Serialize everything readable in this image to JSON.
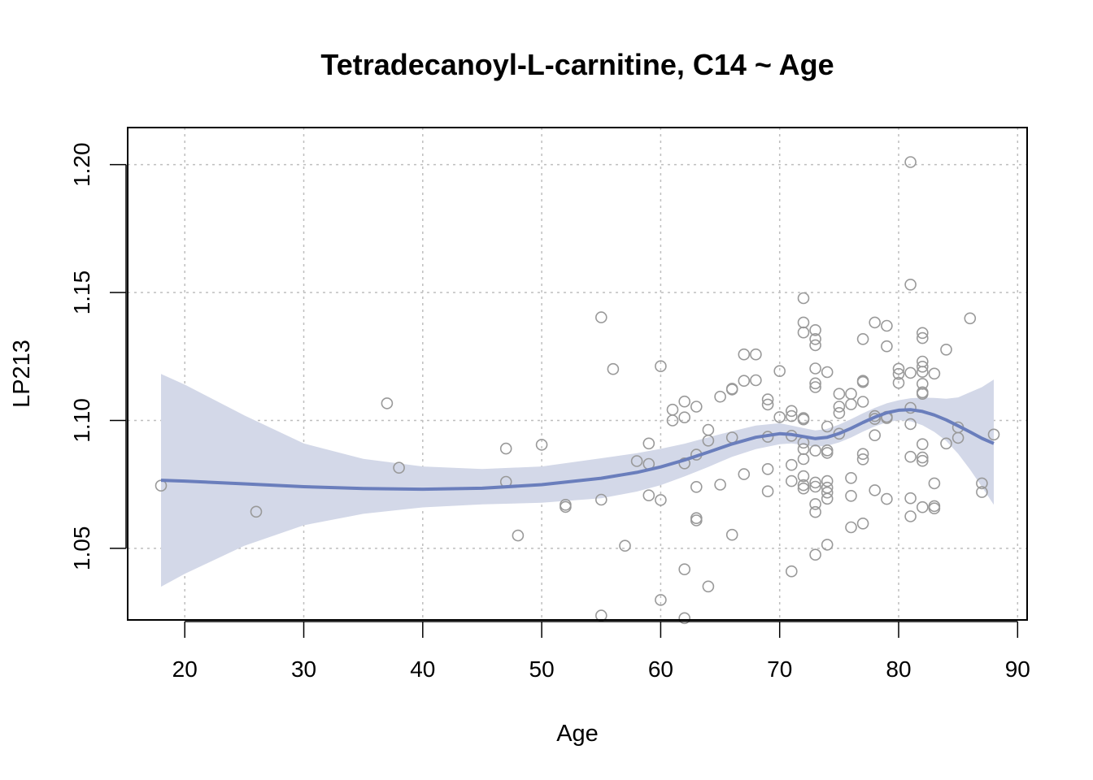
{
  "chart_data": {
    "type": "scatter",
    "title": "Tetradecanoyl-L-carnitine, C14 ~ Age",
    "xlabel": "Age",
    "ylabel": "LP213",
    "xlim": [
      15.2,
      90.8
    ],
    "ylim": [
      1.022,
      1.2145
    ],
    "xticks": [
      20,
      30,
      40,
      50,
      60,
      70,
      80,
      90
    ],
    "yticks": [
      1.05,
      1.1,
      1.15,
      1.2
    ],
    "ytick_labels": [
      "1.05",
      "1.10",
      "1.15",
      "1.20"
    ],
    "grid": true,
    "colors": {
      "points": "#999999",
      "smooth": "#6A7EBC",
      "band": "#D3D8E8",
      "grid": "#BEBEBE"
    },
    "points": [
      [
        18,
        1.0745
      ],
      [
        26,
        1.0643
      ],
      [
        37,
        1.1067
      ],
      [
        38,
        1.0815
      ],
      [
        47,
        1.089
      ],
      [
        47,
        1.076
      ],
      [
        48,
        1.055
      ],
      [
        50,
        1.0905
      ],
      [
        52,
        1.067
      ],
      [
        52,
        1.0662
      ],
      [
        55,
        1.1403
      ],
      [
        55,
        1.069
      ],
      [
        55,
        1.0237
      ],
      [
        56,
        1.1201
      ],
      [
        57,
        1.051
      ],
      [
        58,
        1.0841
      ],
      [
        59,
        1.091
      ],
      [
        59,
        1.083
      ],
      [
        59,
        1.0707
      ],
      [
        60,
        1.1212
      ],
      [
        60,
        1.0689
      ],
      [
        60,
        1.0298
      ],
      [
        61,
        1.1042
      ],
      [
        61,
        1.1
      ],
      [
        62,
        1.1074
      ],
      [
        62,
        1.1012
      ],
      [
        62,
        1.0832
      ],
      [
        62,
        1.0418
      ],
      [
        62,
        1.0227
      ],
      [
        63,
        1.1054
      ],
      [
        63,
        1.0866
      ],
      [
        63,
        1.074
      ],
      [
        63,
        1.0618
      ],
      [
        63,
        1.0609
      ],
      [
        64,
        1.0963
      ],
      [
        64,
        1.0921
      ],
      [
        64,
        1.0351
      ],
      [
        65,
        1.1093
      ],
      [
        65,
        1.0749
      ],
      [
        66,
        1.1124
      ],
      [
        66,
        1.1121
      ],
      [
        66,
        1.0933
      ],
      [
        66,
        1.0553
      ],
      [
        67,
        1.1258
      ],
      [
        67,
        1.1155
      ],
      [
        67,
        1.079
      ],
      [
        68,
        1.1258
      ],
      [
        68,
        1.1157
      ],
      [
        69,
        1.1082
      ],
      [
        69,
        1.1062
      ],
      [
        69,
        1.0936
      ],
      [
        69,
        1.081
      ],
      [
        69,
        1.0723
      ],
      [
        70,
        1.1193
      ],
      [
        70,
        1.1013
      ],
      [
        71,
        1.1037
      ],
      [
        71,
        1.1017
      ],
      [
        71,
        1.094
      ],
      [
        71,
        1.0826
      ],
      [
        71,
        1.0763
      ],
      [
        71,
        1.041
      ],
      [
        72,
        1.1478
      ],
      [
        72,
        1.1383
      ],
      [
        72,
        1.1344
      ],
      [
        72,
        1.1009
      ],
      [
        72,
        1.1004
      ],
      [
        72,
        1.0913
      ],
      [
        72,
        1.0888
      ],
      [
        72,
        1.0849
      ],
      [
        72,
        1.0782
      ],
      [
        72,
        1.0747
      ],
      [
        72,
        1.0734
      ],
      [
        73,
        1.1353
      ],
      [
        73,
        1.1318
      ],
      [
        73,
        1.1294
      ],
      [
        73,
        1.1203
      ],
      [
        73,
        1.1145
      ],
      [
        73,
        1.113
      ],
      [
        73,
        1.0882
      ],
      [
        73,
        1.0757
      ],
      [
        73,
        1.0741
      ],
      [
        73,
        1.0673
      ],
      [
        73,
        1.0642
      ],
      [
        73,
        1.0475
      ],
      [
        74,
        1.1189
      ],
      [
        74,
        1.0976
      ],
      [
        74,
        1.0883
      ],
      [
        74,
        1.0873
      ],
      [
        74,
        1.0763
      ],
      [
        74,
        1.0737
      ],
      [
        74,
        1.0718
      ],
      [
        74,
        1.0694
      ],
      [
        74,
        1.0514
      ],
      [
        75,
        1.1104
      ],
      [
        75,
        1.1054
      ],
      [
        75,
        1.1029
      ],
      [
        75,
        1.0948
      ],
      [
        76,
        1.1104
      ],
      [
        76,
        1.1063
      ],
      [
        76,
        1.0775
      ],
      [
        76,
        1.0705
      ],
      [
        76,
        1.0582
      ],
      [
        77,
        1.1318
      ],
      [
        77,
        1.1155
      ],
      [
        77,
        1.115
      ],
      [
        77,
        1.1073
      ],
      [
        77,
        1.0869
      ],
      [
        77,
        1.0848
      ],
      [
        77,
        1.0597
      ],
      [
        78,
        1.1383
      ],
      [
        78,
        1.1017
      ],
      [
        78,
        1.1006
      ],
      [
        78,
        1.0942
      ],
      [
        78,
        1.0727
      ],
      [
        79,
        1.137
      ],
      [
        79,
        1.129
      ],
      [
        79,
        1.1014
      ],
      [
        79,
        1.1009
      ],
      [
        79,
        1.0693
      ],
      [
        80,
        1.1202
      ],
      [
        80,
        1.1182
      ],
      [
        80,
        1.1147
      ],
      [
        81,
        1.201
      ],
      [
        81,
        1.1531
      ],
      [
        81,
        1.1186
      ],
      [
        81,
        1.1049
      ],
      [
        81,
        1.0986
      ],
      [
        81,
        1.0858
      ],
      [
        81,
        1.0696
      ],
      [
        81,
        1.0625
      ],
      [
        82,
        1.1342
      ],
      [
        82,
        1.1322
      ],
      [
        82,
        1.123
      ],
      [
        82,
        1.121
      ],
      [
        82,
        1.119
      ],
      [
        82,
        1.1143
      ],
      [
        82,
        1.111
      ],
      [
        82,
        1.1104
      ],
      [
        82,
        1.0907
      ],
      [
        82,
        1.0855
      ],
      [
        82,
        1.0842
      ],
      [
        82,
        1.0661
      ],
      [
        83,
        1.1183
      ],
      [
        83,
        1.0754
      ],
      [
        83,
        1.0665
      ],
      [
        83,
        1.0656
      ],
      [
        84,
        1.1277
      ],
      [
        84,
        1.091
      ],
      [
        85,
        1.0973
      ],
      [
        85,
        1.0932
      ],
      [
        86,
        1.1399
      ],
      [
        87,
        1.0754
      ],
      [
        87,
        1.072
      ],
      [
        88,
        1.0945
      ]
    ],
    "smooth": {
      "x": [
        18,
        20,
        25,
        30,
        35,
        40,
        45,
        50,
        55,
        58,
        60,
        62,
        64,
        66,
        68,
        70,
        71,
        72,
        73,
        74,
        75,
        76,
        77,
        78,
        79,
        80,
        81,
        82,
        83,
        84,
        85,
        86,
        87,
        88
      ],
      "y": [
        1.0766,
        1.0763,
        1.0752,
        1.0741,
        1.0734,
        1.0731,
        1.0735,
        1.0749,
        1.0774,
        1.0797,
        1.0818,
        1.0845,
        1.0876,
        1.0908,
        1.0934,
        1.0948,
        1.0945,
        1.0937,
        1.0929,
        1.0934,
        1.0949,
        1.0969,
        1.0992,
        1.1013,
        1.103,
        1.104,
        1.1042,
        1.1035,
        1.1021,
        1.1002,
        1.0979,
        1.0955,
        1.093,
        1.091
      ],
      "lower": [
        1.035,
        1.04,
        1.051,
        1.059,
        1.0635,
        1.066,
        1.0672,
        1.0678,
        1.0696,
        1.0722,
        1.0747,
        1.0781,
        1.0818,
        1.0858,
        1.0888,
        1.0907,
        1.091,
        1.0904,
        1.0897,
        1.0901,
        1.0914,
        1.0933,
        1.0956,
        1.0977,
        1.0993,
        1.1001,
        1.0997,
        1.0981,
        1.0955,
        1.092,
        1.087,
        1.0808,
        1.074,
        1.067
      ],
      "upper": [
        1.1182,
        1.114,
        1.102,
        1.091,
        1.085,
        1.082,
        1.081,
        1.082,
        1.0852,
        1.0872,
        1.0889,
        1.0909,
        1.0934,
        1.0958,
        1.098,
        1.0989,
        1.098,
        1.097,
        1.0961,
        1.0967,
        1.0984,
        1.1005,
        1.1028,
        1.1049,
        1.1067,
        1.1079,
        1.1087,
        1.1089,
        1.1088,
        1.1085,
        1.109,
        1.111,
        1.113,
        1.116
      ]
    }
  }
}
